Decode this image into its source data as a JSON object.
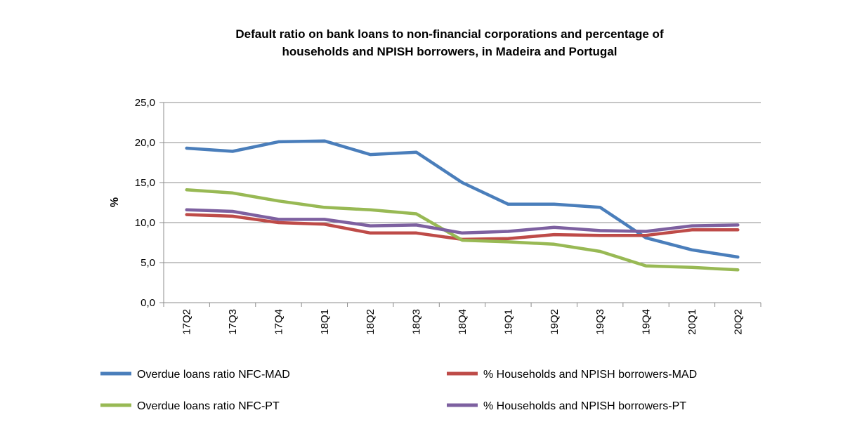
{
  "chart_data": {
    "type": "line",
    "title_lines": [
      "Default ratio on bank loans to non-financial corporations and percentage of",
      "households and NPISH borrowers, in Madeira and Portugal"
    ],
    "xlabel": "",
    "ylabel": "%",
    "ylim": [
      0,
      25
    ],
    "yticks": [
      "0,0",
      "5,0",
      "10,0",
      "15,0",
      "20,0",
      "25,0"
    ],
    "categories": [
      "17Q2",
      "17Q3",
      "17Q4",
      "18Q1",
      "18Q2",
      "18Q3",
      "18Q4",
      "19Q1",
      "19Q2",
      "19Q3",
      "19Q4",
      "20Q1",
      "20Q2"
    ],
    "grid": true,
    "legend_position": "bottom",
    "series": [
      {
        "name": "Overdue loans ratio NFC-MAD",
        "color": "#4a7ebb",
        "values": [
          19.3,
          18.9,
          20.1,
          20.2,
          18.5,
          18.8,
          15.0,
          12.3,
          12.3,
          11.9,
          8.1,
          6.6,
          5.7
        ]
      },
      {
        "name": "% Households and NPISH borrowers-MAD",
        "color": "#be4b48",
        "values": [
          11.0,
          10.8,
          10.0,
          9.8,
          8.7,
          8.7,
          7.9,
          8.0,
          8.5,
          8.4,
          8.4,
          9.1,
          9.1
        ]
      },
      {
        "name": "Overdue loans ratio NFC-PT",
        "color": "#98b954",
        "values": [
          14.1,
          13.7,
          12.7,
          11.9,
          11.6,
          11.1,
          7.8,
          7.6,
          7.3,
          6.4,
          4.6,
          4.4,
          4.1
        ]
      },
      {
        "name": "% Households and NPISH borrowers-PT",
        "color": "#7d60a0",
        "values": [
          11.6,
          11.4,
          10.4,
          10.4,
          9.6,
          9.7,
          8.7,
          8.9,
          9.4,
          9.0,
          8.9,
          9.6,
          9.7
        ]
      }
    ]
  }
}
